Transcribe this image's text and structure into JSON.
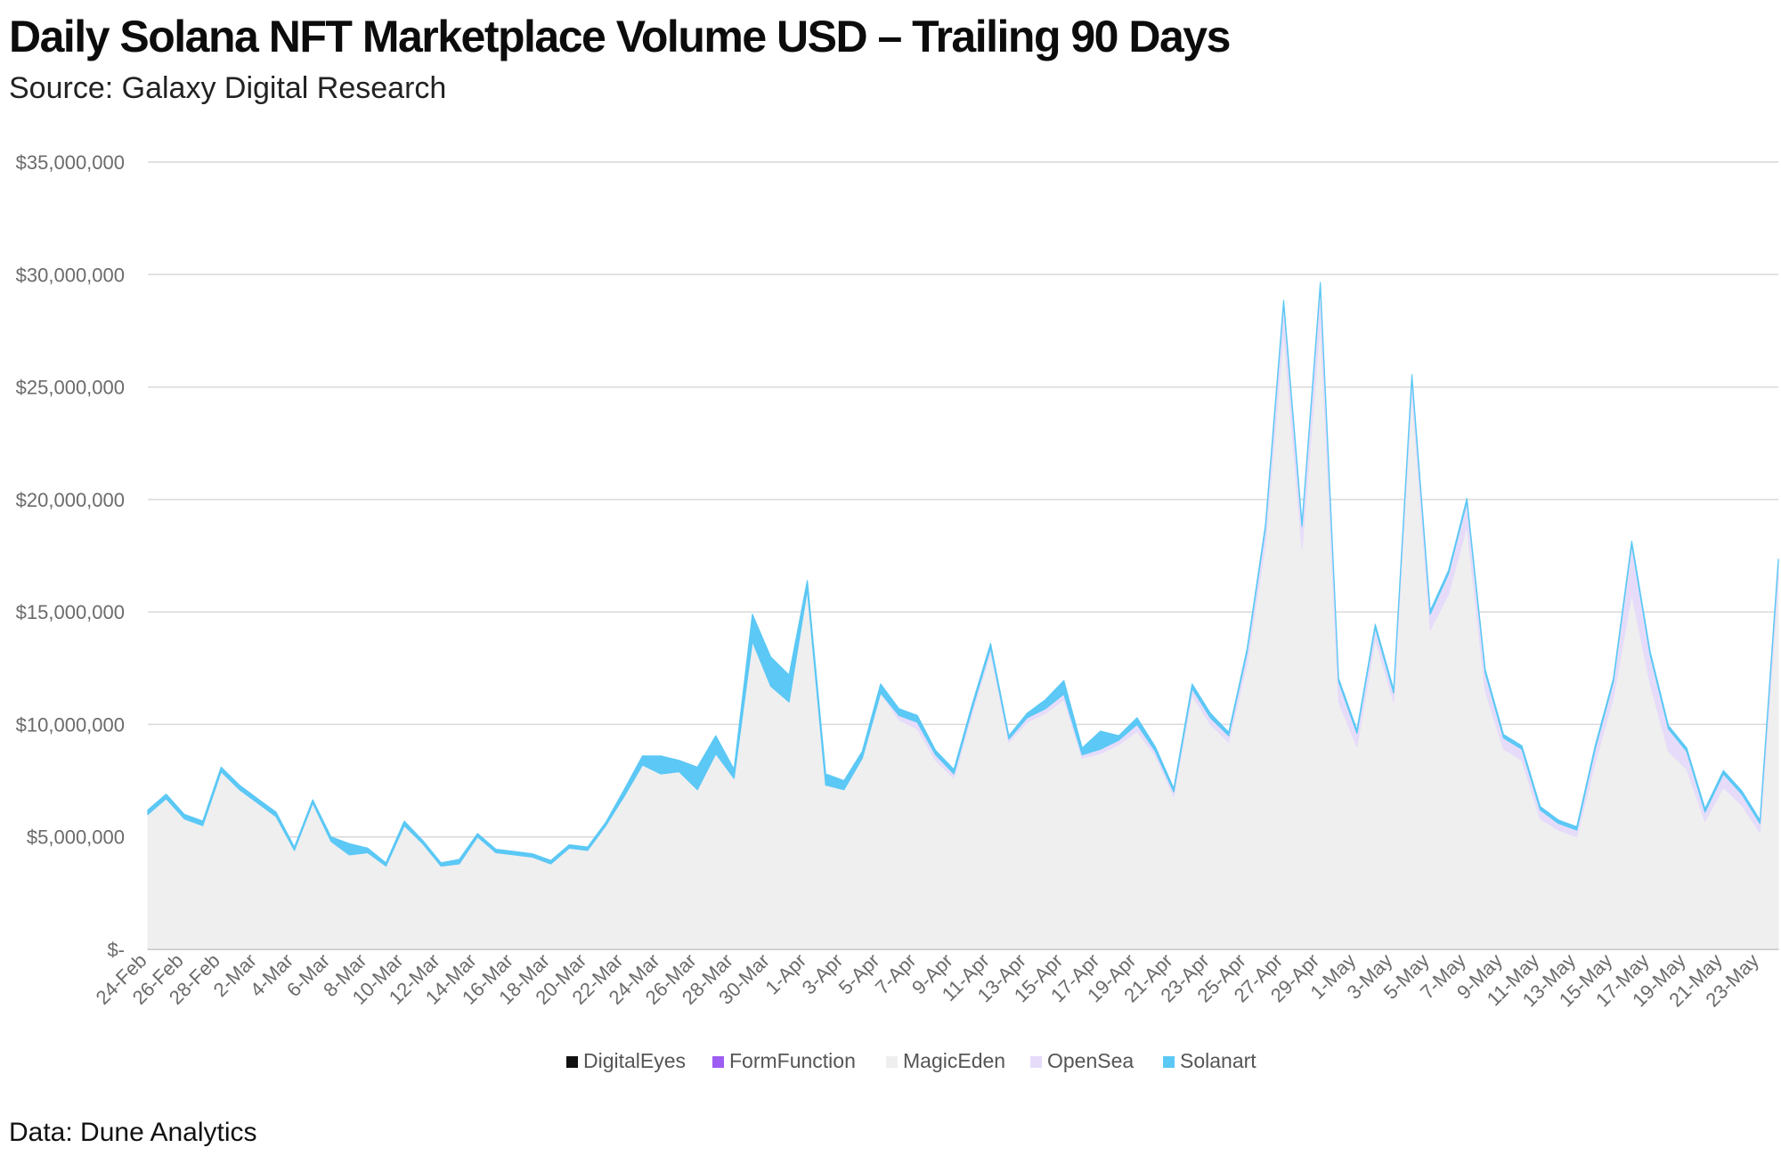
{
  "title": "Daily Solana NFT Marketplace Volume USD – Trailing 90 Days",
  "subtitle": "Source: Galaxy Digital Research",
  "footer": "Data: Dune Analytics",
  "chart_data": {
    "type": "area",
    "stacked": true,
    "title": "Daily Solana NFT Marketplace Volume USD – Trailing 90 Days",
    "xlabel": "",
    "ylabel": "",
    "ylim": [
      0,
      35000000
    ],
    "grid": true,
    "legend_position": "bottom",
    "y_ticks": [
      {
        "value": 0,
        "label": "$-"
      },
      {
        "value": 5000000,
        "label": "$5,000,000"
      },
      {
        "value": 10000000,
        "label": "$10,000,000"
      },
      {
        "value": 15000000,
        "label": "$15,000,000"
      },
      {
        "value": 20000000,
        "label": "$20,000,000"
      },
      {
        "value": 25000000,
        "label": "$25,000,000"
      },
      {
        "value": 30000000,
        "label": "$30,000,000"
      },
      {
        "value": 35000000,
        "label": "$35,000,000"
      }
    ],
    "x_tick_labels": [
      "24-Feb",
      "26-Feb",
      "28-Feb",
      "2-Mar",
      "4-Mar",
      "6-Mar",
      "8-Mar",
      "10-Mar",
      "12-Mar",
      "14-Mar",
      "16-Mar",
      "18-Mar",
      "20-Mar",
      "22-Mar",
      "24-Mar",
      "26-Mar",
      "28-Mar",
      "30-Mar",
      "1-Apr",
      "3-Apr",
      "5-Apr",
      "7-Apr",
      "9-Apr",
      "11-Apr",
      "13-Apr",
      "15-Apr",
      "17-Apr",
      "19-Apr",
      "21-Apr",
      "23-Apr",
      "25-Apr",
      "27-Apr",
      "29-Apr",
      "1-May",
      "3-May",
      "5-May",
      "7-May",
      "9-May",
      "11-May",
      "13-May",
      "15-May",
      "17-May",
      "19-May",
      "21-May",
      "23-May"
    ],
    "x": [
      "24-Feb",
      "25-Feb",
      "26-Feb",
      "27-Feb",
      "28-Feb",
      "1-Mar",
      "2-Mar",
      "3-Mar",
      "4-Mar",
      "5-Mar",
      "6-Mar",
      "7-Mar",
      "8-Mar",
      "9-Mar",
      "10-Mar",
      "11-Mar",
      "12-Mar",
      "13-Mar",
      "14-Mar",
      "15-Mar",
      "16-Mar",
      "17-Mar",
      "18-Mar",
      "19-Mar",
      "20-Mar",
      "21-Mar",
      "22-Mar",
      "23-Mar",
      "24-Mar",
      "25-Mar",
      "26-Mar",
      "27-Mar",
      "28-Mar",
      "29-Mar",
      "30-Mar",
      "31-Mar",
      "1-Apr",
      "2-Apr",
      "3-Apr",
      "4-Apr",
      "5-Apr",
      "6-Apr",
      "7-Apr",
      "8-Apr",
      "9-Apr",
      "10-Apr",
      "11-Apr",
      "12-Apr",
      "13-Apr",
      "14-Apr",
      "15-Apr",
      "16-Apr",
      "17-Apr",
      "18-Apr",
      "19-Apr",
      "20-Apr",
      "21-Apr",
      "22-Apr",
      "23-Apr",
      "24-Apr",
      "25-Apr",
      "26-Apr",
      "27-Apr",
      "28-Apr",
      "29-Apr",
      "30-Apr",
      "1-May",
      "2-May",
      "3-May",
      "4-May",
      "5-May",
      "6-May",
      "7-May",
      "8-May",
      "9-May",
      "10-May",
      "11-May",
      "12-May",
      "13-May",
      "14-May",
      "15-May",
      "16-May",
      "17-May",
      "18-May",
      "19-May",
      "20-May",
      "21-May",
      "22-May",
      "23-May",
      "24-May"
    ],
    "series": [
      {
        "name": "DigitalEyes",
        "color": "#111111",
        "values": [
          0,
          0,
          0,
          0,
          0,
          0,
          0,
          0,
          0,
          0,
          0,
          0,
          0,
          0,
          0,
          0,
          0,
          0,
          0,
          0,
          0,
          0,
          0,
          0,
          0,
          0,
          0,
          0,
          0,
          0,
          0,
          0,
          0,
          0,
          0,
          0,
          0,
          0,
          0,
          0,
          0,
          0,
          0,
          0,
          0,
          0,
          0,
          0,
          0,
          0,
          0,
          0,
          0,
          0,
          0,
          0,
          0,
          0,
          0,
          0,
          0,
          0,
          0,
          0,
          0,
          0,
          0,
          0,
          0,
          0,
          0,
          0,
          0,
          0,
          0,
          0,
          0,
          0,
          0,
          0,
          0,
          0,
          0,
          0,
          0,
          0,
          0,
          0,
          0,
          0
        ]
      },
      {
        "name": "FormFunction",
        "color": "#9d5cf2",
        "values": [
          0,
          0,
          0,
          0,
          0,
          0,
          0,
          0,
          0,
          0,
          0,
          0,
          0,
          0,
          0,
          0,
          0,
          0,
          0,
          0,
          0,
          0,
          0,
          0,
          0,
          0,
          0,
          0,
          0,
          0,
          0,
          0,
          0,
          0,
          0,
          0,
          0,
          0,
          0,
          0,
          0,
          0,
          0,
          0,
          0,
          0,
          0,
          0,
          0,
          0,
          0,
          0,
          0,
          0,
          0,
          0,
          0,
          0,
          0,
          0,
          0,
          0,
          0,
          0,
          0,
          0,
          0,
          0,
          0,
          0,
          0,
          0,
          0,
          0,
          0,
          0,
          0,
          0,
          0,
          0,
          0,
          0,
          0,
          0,
          0,
          0,
          0,
          0,
          0,
          0
        ]
      },
      {
        "name": "MagicEden",
        "color": "#efefef",
        "values": [
          6000000,
          6700000,
          5800000,
          5500000,
          7900000,
          7100000,
          6500000,
          5900000,
          4400000,
          6500000,
          4800000,
          4200000,
          4300000,
          3700000,
          5500000,
          4700000,
          3700000,
          3800000,
          5000000,
          4300000,
          4200000,
          4100000,
          3800000,
          4500000,
          4400000,
          5500000,
          6800000,
          8200000,
          7800000,
          7900000,
          7100000,
          8700000,
          7600000,
          13700000,
          11700000,
          11000000,
          16000000,
          7300000,
          7100000,
          8500000,
          11400000,
          10200000,
          9800000,
          8400000,
          7600000,
          10500000,
          13200000,
          9200000,
          10100000,
          10500000,
          11100000,
          8500000,
          8700000,
          9100000,
          9700000,
          8600000,
          6800000,
          11300000,
          10000000,
          9200000,
          12700000,
          18000000,
          27500000,
          17800000,
          28000000,
          11000000,
          9000000,
          13800000,
          11000000,
          24800000,
          14200000,
          15800000,
          18800000,
          11500000,
          8900000,
          8400000,
          5800000,
          5300000,
          5000000,
          8300000,
          11200000,
          15800000,
          11800000,
          8800000,
          8000000,
          5700000,
          7200000,
          6400000,
          5200000,
          16400000
        ]
      },
      {
        "name": "OpenSea",
        "color": "#e6dcfa",
        "values": [
          0,
          0,
          0,
          0,
          0,
          0,
          0,
          0,
          0,
          0,
          0,
          0,
          0,
          0,
          0,
          0,
          0,
          0,
          0,
          0,
          0,
          0,
          0,
          0,
          0,
          0,
          0,
          0,
          0,
          0,
          0,
          0,
          0,
          0,
          0,
          0,
          0,
          0,
          0,
          0,
          0,
          200000,
          300000,
          250000,
          200000,
          200000,
          200000,
          150000,
          200000,
          200000,
          250000,
          150000,
          200000,
          200000,
          300000,
          200000,
          200000,
          300000,
          300000,
          300000,
          500000,
          700000,
          1200000,
          1000000,
          1500000,
          900000,
          600000,
          500000,
          400000,
          600000,
          700000,
          900000,
          1100000,
          800000,
          500000,
          500000,
          400000,
          300000,
          300000,
          600000,
          700000,
          2200000,
          1300000,
          1000000,
          800000,
          400000,
          600000,
          500000,
          400000,
          800000
        ]
      },
      {
        "name": "Solanart",
        "color": "#5bc8f5",
        "values": [
          200000,
          200000,
          200000,
          200000,
          200000,
          200000,
          200000,
          200000,
          150000,
          150000,
          200000,
          500000,
          200000,
          150000,
          200000,
          150000,
          150000,
          200000,
          150000,
          150000,
          150000,
          150000,
          150000,
          150000,
          150000,
          150000,
          300000,
          400000,
          800000,
          500000,
          1000000,
          800000,
          400000,
          1200000,
          1300000,
          1200000,
          400000,
          500000,
          400000,
          300000,
          400000,
          300000,
          300000,
          200000,
          200000,
          200000,
          200000,
          150000,
          200000,
          400000,
          600000,
          300000,
          800000,
          200000,
          300000,
          200000,
          150000,
          200000,
          200000,
          150000,
          150000,
          150000,
          150000,
          150000,
          150000,
          150000,
          150000,
          150000,
          150000,
          150000,
          150000,
          150000,
          150000,
          150000,
          150000,
          150000,
          150000,
          150000,
          150000,
          150000,
          150000,
          150000,
          150000,
          150000,
          150000,
          150000,
          150000,
          150000,
          150000,
          150000
        ]
      }
    ]
  }
}
